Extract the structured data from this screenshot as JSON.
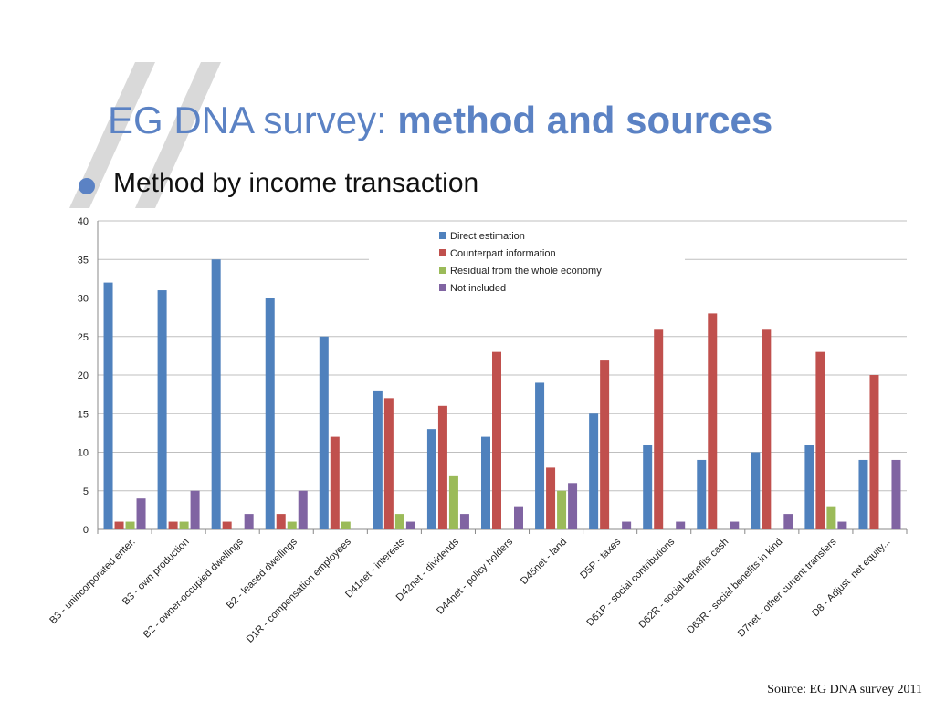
{
  "slide": {
    "title_plain": "EG DNA survey: ",
    "title_bold": "method and sources",
    "bullet": "Method by income transaction",
    "source": "Source: EG DNA survey 2011"
  },
  "chart_data": {
    "type": "bar",
    "title": "",
    "xlabel": "",
    "ylabel": "",
    "ylim": [
      0,
      40
    ],
    "yticks": [
      0,
      5,
      10,
      15,
      20,
      25,
      30,
      35,
      40
    ],
    "grid": true,
    "legend_position": "top-center",
    "categories": [
      "B3 - unincorporated enter.",
      "B3 - own production",
      "B2 - owner-occupied dwellings",
      "B2 - leased dwellings",
      "D1R - compensation employees",
      "D41net - interests",
      "D42net - dividends",
      "D44net - policy holders",
      "D45net - land",
      "D5P - taxes",
      "D61P - social contributions",
      "D62R - social benefits cash",
      "D63R - social benefits in kind",
      "D7net - other current transfers",
      "D8 - Adjust. net equity..."
    ],
    "series": [
      {
        "name": "Direct estimation",
        "color": "#4f81bd",
        "values": [
          32,
          31,
          35,
          30,
          25,
          18,
          13,
          12,
          19,
          15,
          11,
          9,
          10,
          11,
          9
        ]
      },
      {
        "name": "Counterpart information",
        "color": "#c0504d",
        "values": [
          1,
          1,
          1,
          2,
          12,
          17,
          16,
          23,
          8,
          22,
          26,
          28,
          26,
          23,
          20
        ]
      },
      {
        "name": "Residual from the whole economy",
        "color": "#9bbb59",
        "values": [
          1,
          1,
          0,
          1,
          1,
          2,
          7,
          0,
          5,
          0,
          0,
          0,
          0,
          3,
          0
        ]
      },
      {
        "name": "Not included",
        "color": "#8064a2",
        "values": [
          4,
          5,
          2,
          5,
          0,
          1,
          2,
          3,
          6,
          1,
          1,
          1,
          2,
          1,
          9
        ]
      }
    ]
  }
}
